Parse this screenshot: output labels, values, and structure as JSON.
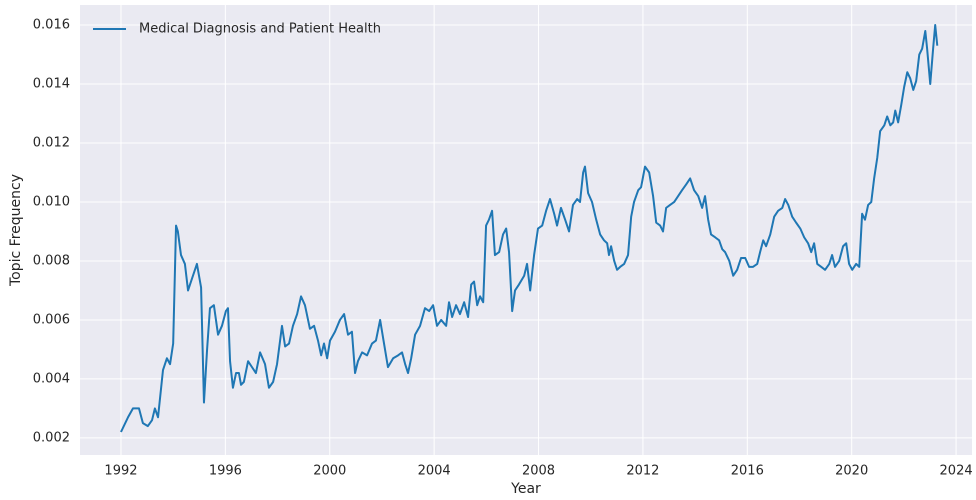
{
  "chart_data": {
    "type": "line",
    "x_label": "Year",
    "y_label": "Topic Frequency",
    "x": [
      1992.0,
      1992.27,
      1992.46,
      1992.69,
      1992.84,
      1993.03,
      1993.19,
      1993.3,
      1993.42,
      1993.61,
      1993.76,
      1993.88,
      1994.0,
      1994.11,
      1994.18,
      1994.3,
      1994.45,
      1994.57,
      1994.72,
      1994.91,
      1995.07,
      1995.18,
      1995.3,
      1995.41,
      1995.56,
      1995.72,
      1995.87,
      1996.02,
      1996.1,
      1996.18,
      1996.29,
      1996.41,
      1996.52,
      1996.6,
      1996.71,
      1996.87,
      1997.02,
      1997.17,
      1997.33,
      1997.52,
      1997.67,
      1997.83,
      1997.98,
      1998.17,
      1998.29,
      1998.44,
      1998.59,
      1998.75,
      1998.9,
      1999.05,
      1999.24,
      1999.4,
      1999.55,
      1999.67,
      1999.78,
      1999.9,
      2000.01,
      2000.2,
      2000.39,
      2000.55,
      2000.7,
      2000.85,
      2000.97,
      2001.08,
      2001.24,
      2001.43,
      2001.62,
      2001.77,
      2001.93,
      2002.08,
      2002.23,
      2002.43,
      2002.62,
      2002.77,
      2002.89,
      2003.0,
      2003.12,
      2003.27,
      2003.46,
      2003.65,
      2003.81,
      2003.96,
      2004.11,
      2004.27,
      2004.46,
      2004.57,
      2004.69,
      2004.84,
      2004.99,
      2005.15,
      2005.3,
      2005.42,
      2005.53,
      2005.65,
      2005.76,
      2005.88,
      2005.99,
      2006.1,
      2006.22,
      2006.33,
      2006.49,
      2006.64,
      2006.76,
      2006.87,
      2006.99,
      2007.1,
      2007.25,
      2007.45,
      2007.56,
      2007.68,
      2007.83,
      2007.98,
      2008.14,
      2008.29,
      2008.44,
      2008.6,
      2008.71,
      2008.86,
      2009.02,
      2009.17,
      2009.32,
      2009.48,
      2009.59,
      2009.71,
      2009.78,
      2009.9,
      2010.05,
      2010.21,
      2010.36,
      2010.51,
      2010.63,
      2010.7,
      2010.78,
      2010.9,
      2011.01,
      2011.13,
      2011.28,
      2011.43,
      2011.55,
      2011.66,
      2011.82,
      2011.93,
      2012.08,
      2012.24,
      2012.39,
      2012.51,
      2012.66,
      2012.77,
      2012.89,
      2013.04,
      2013.2,
      2013.35,
      2013.5,
      2013.66,
      2013.81,
      2013.96,
      2014.12,
      2014.27,
      2014.38,
      2014.5,
      2014.61,
      2014.77,
      2014.92,
      2015.04,
      2015.15,
      2015.31,
      2015.46,
      2015.61,
      2015.76,
      2015.92,
      2016.07,
      2016.22,
      2016.38,
      2016.49,
      2016.61,
      2016.72,
      2016.88,
      2017.03,
      2017.18,
      2017.34,
      2017.45,
      2017.57,
      2017.72,
      2017.87,
      2018.03,
      2018.18,
      2018.33,
      2018.45,
      2018.56,
      2018.68,
      2018.83,
      2018.98,
      2019.14,
      2019.25,
      2019.36,
      2019.52,
      2019.67,
      2019.79,
      2019.9,
      2020.02,
      2020.17,
      2020.29,
      2020.4,
      2020.51,
      2020.63,
      2020.75,
      2020.86,
      2020.98,
      2021.09,
      2021.25,
      2021.36,
      2021.48,
      2021.59,
      2021.67,
      2021.78,
      2021.9,
      2022.01,
      2022.13,
      2022.24,
      2022.36,
      2022.47,
      2022.59,
      2022.7,
      2022.82,
      2022.89,
      2023.01,
      2023.12,
      2023.2,
      2023.28
    ],
    "series": [
      {
        "name": "Medical Diagnosis and Patient Health",
        "color": "#1f77b4",
        "values": [
          0.0022,
          0.0027,
          0.003,
          0.003,
          0.0025,
          0.0024,
          0.0026,
          0.003,
          0.0027,
          0.0043,
          0.0047,
          0.0045,
          0.0052,
          0.0092,
          0.009,
          0.0082,
          0.0079,
          0.007,
          0.0074,
          0.0079,
          0.0071,
          0.0032,
          0.005,
          0.0064,
          0.0065,
          0.0055,
          0.0058,
          0.0063,
          0.0064,
          0.0046,
          0.0037,
          0.0042,
          0.0042,
          0.0038,
          0.0039,
          0.0046,
          0.0044,
          0.0042,
          0.0049,
          0.0045,
          0.0037,
          0.0039,
          0.0045,
          0.0058,
          0.0051,
          0.0052,
          0.0058,
          0.0062,
          0.0068,
          0.0065,
          0.0057,
          0.0058,
          0.0053,
          0.0048,
          0.0052,
          0.0047,
          0.0053,
          0.0056,
          0.006,
          0.0062,
          0.0055,
          0.0056,
          0.0042,
          0.0046,
          0.0049,
          0.0048,
          0.0052,
          0.0053,
          0.006,
          0.0052,
          0.0044,
          0.0047,
          0.0048,
          0.0049,
          0.0045,
          0.0042,
          0.0047,
          0.0055,
          0.0058,
          0.0064,
          0.0063,
          0.0065,
          0.0058,
          0.006,
          0.0058,
          0.0066,
          0.0061,
          0.0065,
          0.0062,
          0.0066,
          0.0061,
          0.0072,
          0.0073,
          0.0065,
          0.0068,
          0.0066,
          0.0092,
          0.0094,
          0.0097,
          0.0082,
          0.0083,
          0.0089,
          0.0091,
          0.0083,
          0.0063,
          0.007,
          0.0072,
          0.0075,
          0.0079,
          0.007,
          0.0082,
          0.0091,
          0.0092,
          0.0097,
          0.0101,
          0.0096,
          0.0092,
          0.0098,
          0.0094,
          0.009,
          0.0099,
          0.0101,
          0.01,
          0.011,
          0.0112,
          0.0103,
          0.01,
          0.0094,
          0.0089,
          0.0087,
          0.0086,
          0.0082,
          0.0085,
          0.008,
          0.0077,
          0.0078,
          0.0079,
          0.0082,
          0.0095,
          0.01,
          0.0104,
          0.0105,
          0.0112,
          0.011,
          0.0102,
          0.0093,
          0.0092,
          0.009,
          0.0098,
          0.0099,
          0.01,
          0.0102,
          0.0104,
          0.0106,
          0.0108,
          0.0104,
          0.0102,
          0.0098,
          0.0102,
          0.0094,
          0.0089,
          0.0088,
          0.0087,
          0.0084,
          0.0083,
          0.008,
          0.0075,
          0.0077,
          0.0081,
          0.0081,
          0.0078,
          0.0078,
          0.0079,
          0.0083,
          0.0087,
          0.0085,
          0.0089,
          0.0095,
          0.0097,
          0.0098,
          0.0101,
          0.0099,
          0.0095,
          0.0093,
          0.0091,
          0.0088,
          0.0086,
          0.0083,
          0.0086,
          0.0079,
          0.0078,
          0.0077,
          0.0079,
          0.0082,
          0.0078,
          0.008,
          0.0085,
          0.0086,
          0.0079,
          0.0077,
          0.0079,
          0.0078,
          0.0096,
          0.0094,
          0.0099,
          0.01,
          0.0108,
          0.0115,
          0.0124,
          0.0126,
          0.0129,
          0.0126,
          0.0127,
          0.0131,
          0.0127,
          0.0133,
          0.0139,
          0.0144,
          0.0142,
          0.0138,
          0.0141,
          0.015,
          0.0152,
          0.0158,
          0.0152,
          0.014,
          0.0152,
          0.016,
          0.0153
        ]
      }
    ],
    "xlim": [
      1990.43,
      2024.61
    ],
    "xticks": [
      1992,
      1996,
      2000,
      2004,
      2008,
      2012,
      2016,
      2020,
      2024
    ],
    "ylim": [
      0.00142,
      0.01668
    ],
    "yticks": [
      0.002,
      0.004,
      0.006,
      0.008,
      {
        "value": 0.01,
        "label": "0.010"
      },
      0.012,
      0.014,
      0.016
    ],
    "grid": true,
    "legend": "upper left"
  }
}
